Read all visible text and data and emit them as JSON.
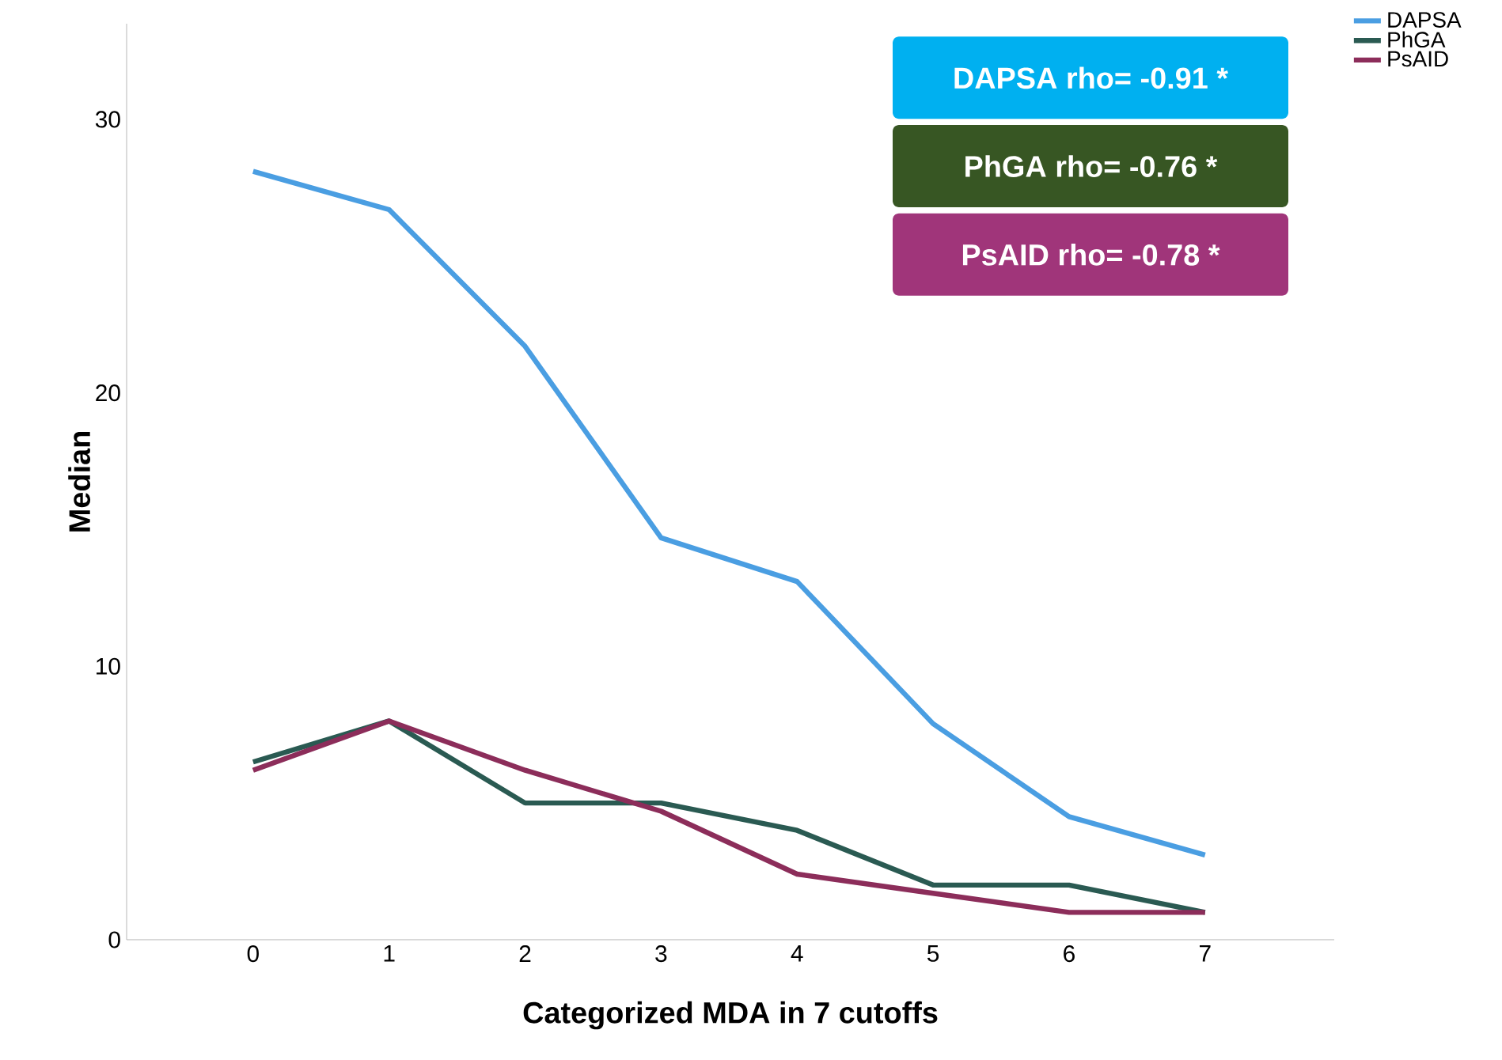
{
  "chart_data": {
    "type": "line",
    "xlabel": "Categorized MDA in 7 cutoffs",
    "ylabel": "Median",
    "categories": [
      "0",
      "1",
      "2",
      "3",
      "4",
      "5",
      "6",
      "7"
    ],
    "series": [
      {
        "name": "DAPSA",
        "color": "#4a9ee2",
        "values": [
          28.1,
          26.7,
          21.7,
          14.7,
          13.1,
          7.9,
          4.5,
          3.1
        ]
      },
      {
        "name": "PhGA",
        "color": "#2a5a52",
        "values": [
          6.5,
          8.0,
          5.0,
          5.0,
          4.0,
          2.0,
          2.0,
          1.0
        ]
      },
      {
        "name": "PsAID",
        "color": "#8c2d5a",
        "values": [
          6.2,
          8.0,
          6.2,
          4.7,
          2.4,
          1.7,
          1.0,
          1.0
        ]
      }
    ],
    "ylim": [
      0,
      33.5
    ],
    "yticks": [
      0,
      10,
      20,
      30
    ],
    "legend": "top right",
    "grid": false,
    "marker": "none",
    "line_style": "solid",
    "annotations": [
      "DAPSA rho= -0.91 *",
      "PhGA rho= -0.76 *",
      "PsAID rho= -0.78 *"
    ]
  }
}
